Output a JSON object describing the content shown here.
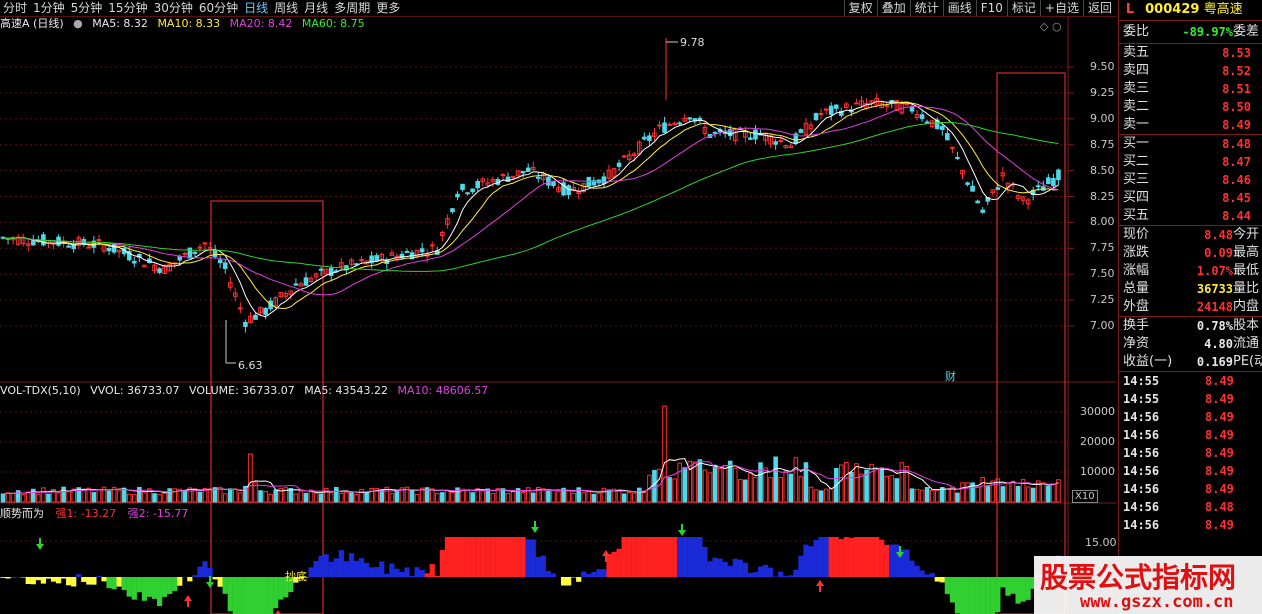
{
  "toolbar": {
    "left": [
      "分时",
      "1分钟",
      "5分钟",
      "15分钟",
      "30分钟",
      "60分钟",
      "日线",
      "周线",
      "月线",
      "多周期",
      "更多"
    ],
    "active": "日线",
    "right": [
      "复权",
      "叠加",
      "统计",
      "画线",
      "F10",
      "标记",
      "+自选",
      "返回"
    ]
  },
  "ma_line": {
    "title": "高速A (日线)",
    "ma5": "MA5: 8.32",
    "ma10": "MA10: 8.33",
    "ma20": "MA20: 8.42",
    "ma60": "MA60: 8.75"
  },
  "price_axis": [
    "9.50",
    "9.25",
    "9.00",
    "8.75",
    "8.50",
    "8.25",
    "8.00",
    "7.75",
    "7.50",
    "7.25",
    "7.00"
  ],
  "annotations": {
    "high": "9.78",
    "low": "6.63",
    "cai": "财",
    "dibu": "抄底"
  },
  "vol_line": {
    "name": "VOL-TDX(5,10)",
    "vvol": "VVOL: 36733.07",
    "volume": "VOLUME: 36733.07",
    "ma5": "MA5: 43543.22",
    "ma10": "MA10: 48606.57"
  },
  "vol_axis": [
    "30000",
    "20000",
    "10000"
  ],
  "vol_unit": "X10",
  "ind_line": {
    "name": "顺势而为",
    "q1": "强1: -13.27",
    "q2": "强2: -15.77"
  },
  "ind_axis": "15.00",
  "panel": {
    "l": "L",
    "code": "000429",
    "name": "粤高速",
    "weibi_label": "委比",
    "weibi_value": "-89.97%",
    "weicha_label": "委差",
    "sell": [
      {
        "label": "卖五",
        "price": "8.53"
      },
      {
        "label": "卖四",
        "price": "8.52"
      },
      {
        "label": "卖三",
        "price": "8.51"
      },
      {
        "label": "卖二",
        "price": "8.50"
      },
      {
        "label": "卖一",
        "price": "8.49"
      }
    ],
    "buy": [
      {
        "label": "买一",
        "price": "8.48"
      },
      {
        "label": "买二",
        "price": "8.47"
      },
      {
        "label": "买三",
        "price": "8.46"
      },
      {
        "label": "买四",
        "price": "8.45"
      },
      {
        "label": "买五",
        "price": "8.44"
      }
    ],
    "quote": [
      {
        "label": "现价",
        "value": "8.48",
        "extra": "今开",
        "color": "red"
      },
      {
        "label": "涨跌",
        "value": "0.09",
        "extra": "最高",
        "color": "red"
      },
      {
        "label": "涨幅",
        "value": "1.07%",
        "extra": "最低",
        "color": "red"
      },
      {
        "label": "总量",
        "value": "36733",
        "extra": "量比",
        "color": "yellow"
      },
      {
        "label": "外盘",
        "value": "24148",
        "extra": "内盘",
        "color": "red"
      }
    ],
    "fin": [
      {
        "label": "换手",
        "value": "0.78%",
        "extra": "股本",
        "color": "white"
      },
      {
        "label": "净资",
        "value": "4.80",
        "extra": "流通",
        "color": "white"
      },
      {
        "label": "收益(一)",
        "value": "0.169",
        "extra": "PE(动)",
        "color": "white"
      }
    ],
    "ticks": [
      {
        "time": "14:55",
        "price": "8.49"
      },
      {
        "time": "14:55",
        "price": "8.49"
      },
      {
        "time": "14:56",
        "price": "8.49"
      },
      {
        "time": "14:56",
        "price": "8.49"
      },
      {
        "time": "14:56",
        "price": "8.49"
      },
      {
        "time": "14:56",
        "price": "8.49"
      },
      {
        "time": "14:56",
        "price": "8.49"
      },
      {
        "time": "14:56",
        "price": "8.48"
      },
      {
        "time": "14:56",
        "price": "8.49"
      }
    ]
  },
  "watermark": {
    "title": "股票公式指标网",
    "url": "www.gszx.com.cn"
  },
  "colors": {
    "up": "#ff3030",
    "down": "#4fd8ea",
    "ma5": "#ffffff",
    "ma10": "#ffee33",
    "ma20": "#e040e0",
    "ma60": "#30d030"
  }
}
